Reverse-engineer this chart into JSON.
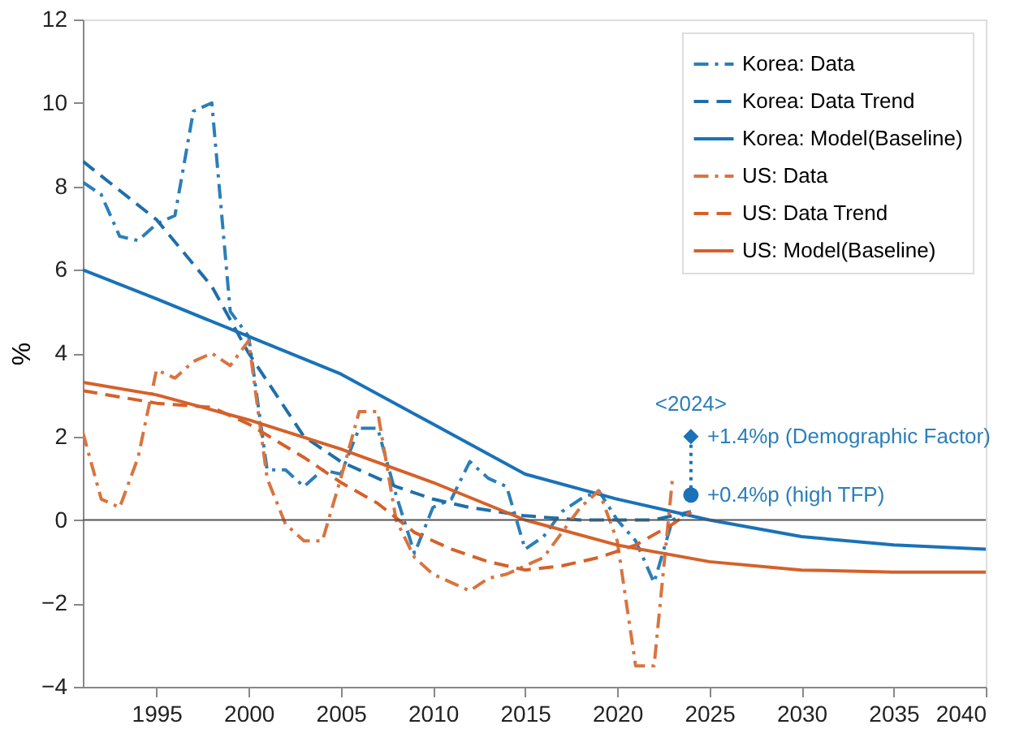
{
  "chart_data": {
    "type": "line",
    "ylabel": "%",
    "xlim": [
      1991,
      2040
    ],
    "ylim": [
      -4,
      12
    ],
    "xticks": [
      1995,
      2000,
      2005,
      2010,
      2015,
      2020,
      2025,
      2030,
      2035,
      2040
    ],
    "yticks": [
      -4,
      -2,
      0,
      2,
      4,
      6,
      8,
      10,
      12
    ],
    "grid": false,
    "legend": "top right",
    "ref_lines": [
      {
        "axis": "y",
        "value": 0,
        "color": "#555555"
      }
    ],
    "series": [
      {
        "name": "Korea: Data",
        "color": "#2a7fb8",
        "line_style": "dashdot",
        "x": [
          1991,
          1992,
          1993,
          1994,
          1995,
          1996,
          1997,
          1998,
          1999,
          2000,
          2001,
          2002,
          2003,
          2004,
          2005,
          2006,
          2007,
          2008,
          2009,
          2010,
          2011,
          2012,
          2013,
          2014,
          2015,
          2016,
          2017,
          2018,
          2019,
          2020,
          2021,
          2022,
          2023,
          2024
        ],
        "values": [
          8.1,
          7.8,
          6.8,
          6.7,
          7.1,
          7.3,
          9.8,
          10.0,
          5.0,
          4.4,
          1.2,
          1.2,
          0.8,
          1.2,
          1.1,
          2.2,
          2.2,
          0.6,
          -0.8,
          0.3,
          0.5,
          1.4,
          1.0,
          0.8,
          -0.7,
          -0.4,
          0.2,
          0.5,
          0.7,
          0.0,
          -0.5,
          -1.5,
          0.0,
          0.2
        ]
      },
      {
        "name": "Korea: Data Trend",
        "color": "#1f6fa8",
        "line_style": "dashed",
        "x": [
          1991,
          1995,
          1998,
          2000,
          2003,
          2005,
          2008,
          2010,
          2012,
          2015,
          2018,
          2020,
          2022,
          2024
        ],
        "values": [
          8.6,
          7.2,
          5.6,
          4.0,
          2.0,
          1.4,
          0.8,
          0.5,
          0.3,
          0.1,
          0.0,
          0.0,
          0.0,
          0.2
        ]
      },
      {
        "name": "Korea: Model(Baseline)",
        "color": "#1a72b8",
        "line_style": "solid",
        "x": [
          1991,
          1995,
          2000,
          2005,
          2010,
          2015,
          2020,
          2025,
          2030,
          2035,
          2040
        ],
        "values": [
          6.0,
          5.3,
          4.4,
          3.5,
          2.3,
          1.1,
          0.5,
          0.0,
          -0.4,
          -0.6,
          -0.7
        ]
      },
      {
        "name": "US: Data",
        "color": "#d9743f",
        "line_style": "dashdot",
        "x": [
          1991,
          1992,
          1993,
          1994,
          1995,
          1996,
          1997,
          1998,
          1999,
          2000,
          2001,
          2002,
          2003,
          2004,
          2005,
          2006,
          2007,
          2008,
          2009,
          2010,
          2011,
          2012,
          2013,
          2014,
          2015,
          2016,
          2017,
          2018,
          2019,
          2020,
          2021,
          2022,
          2023
        ],
        "values": [
          2.1,
          0.5,
          0.3,
          1.5,
          3.6,
          3.4,
          3.8,
          4.0,
          3.7,
          4.3,
          1.0,
          -0.1,
          -0.5,
          -0.5,
          1.0,
          2.6,
          2.6,
          0.0,
          -0.9,
          -1.3,
          -1.5,
          -1.7,
          -1.4,
          -1.3,
          -1.1,
          -0.9,
          -0.3,
          0.3,
          0.7,
          -0.5,
          -3.5,
          -3.5,
          1.0
        ]
      },
      {
        "name": "US: Data Trend",
        "color": "#d5612a",
        "line_style": "dashed",
        "x": [
          1991,
          1995,
          1998,
          2000,
          2003,
          2005,
          2007,
          2009,
          2011,
          2013,
          2015,
          2017,
          2019,
          2021,
          2023,
          2024
        ],
        "values": [
          3.1,
          2.8,
          2.7,
          2.3,
          1.5,
          0.9,
          0.4,
          -0.3,
          -0.7,
          -1.0,
          -1.2,
          -1.1,
          -0.9,
          -0.6,
          -0.1,
          0.2
        ]
      },
      {
        "name": "US: Model(Baseline)",
        "color": "#d5612a",
        "line_style": "solid",
        "x": [
          1991,
          1995,
          2000,
          2005,
          2010,
          2015,
          2020,
          2025,
          2030,
          2035,
          2040
        ],
        "values": [
          3.3,
          3.0,
          2.4,
          1.7,
          0.9,
          0.0,
          -0.6,
          -1.0,
          -1.2,
          -1.25,
          -1.25
        ]
      },
      {
        "type": "scatter",
        "marker": "diamond",
        "color": "#1a72b8",
        "x": [
          2024
        ],
        "values": [
          2.0
        ]
      },
      {
        "type": "scatter",
        "marker": "circle",
        "color": "#1a72b8",
        "x": [
          2024
        ],
        "values": [
          0.6
        ]
      }
    ],
    "annotations": [
      "<2024>",
      {
        "text": "+1.4%p (Demographic Factor)",
        "x": 2024,
        "y": 2.0
      },
      {
        "text": "+0.4%p (high TFP)",
        "x": 2024,
        "y": 0.6
      }
    ]
  }
}
